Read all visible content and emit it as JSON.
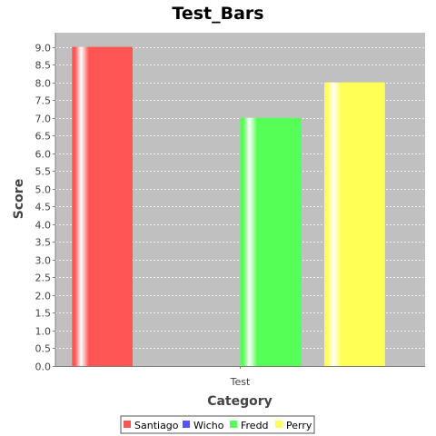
{
  "chart_data": {
    "type": "bar",
    "title": "Test_Bars",
    "xlabel": "Category",
    "ylabel": "Score",
    "categories": [
      "Test"
    ],
    "ylim": [
      0,
      9.4
    ],
    "yticks": [
      0.0,
      0.5,
      1.0,
      1.5,
      2.0,
      2.5,
      3.0,
      3.5,
      4.0,
      4.5,
      5.0,
      5.5,
      6.0,
      6.5,
      7.0,
      7.5,
      8.0,
      8.5,
      9.0
    ],
    "grid": true,
    "legend_position": "bottom",
    "series": [
      {
        "name": "Santiago",
        "values": [
          9.0
        ],
        "color": "#ff5555"
      },
      {
        "name": "Wicho",
        "values": [
          0.0
        ],
        "color": "#5555ff"
      },
      {
        "name": "Fredd",
        "values": [
          7.0
        ],
        "color": "#55ff55"
      },
      {
        "name": "Perry",
        "values": [
          8.0
        ],
        "color": "#ffff55"
      }
    ]
  }
}
